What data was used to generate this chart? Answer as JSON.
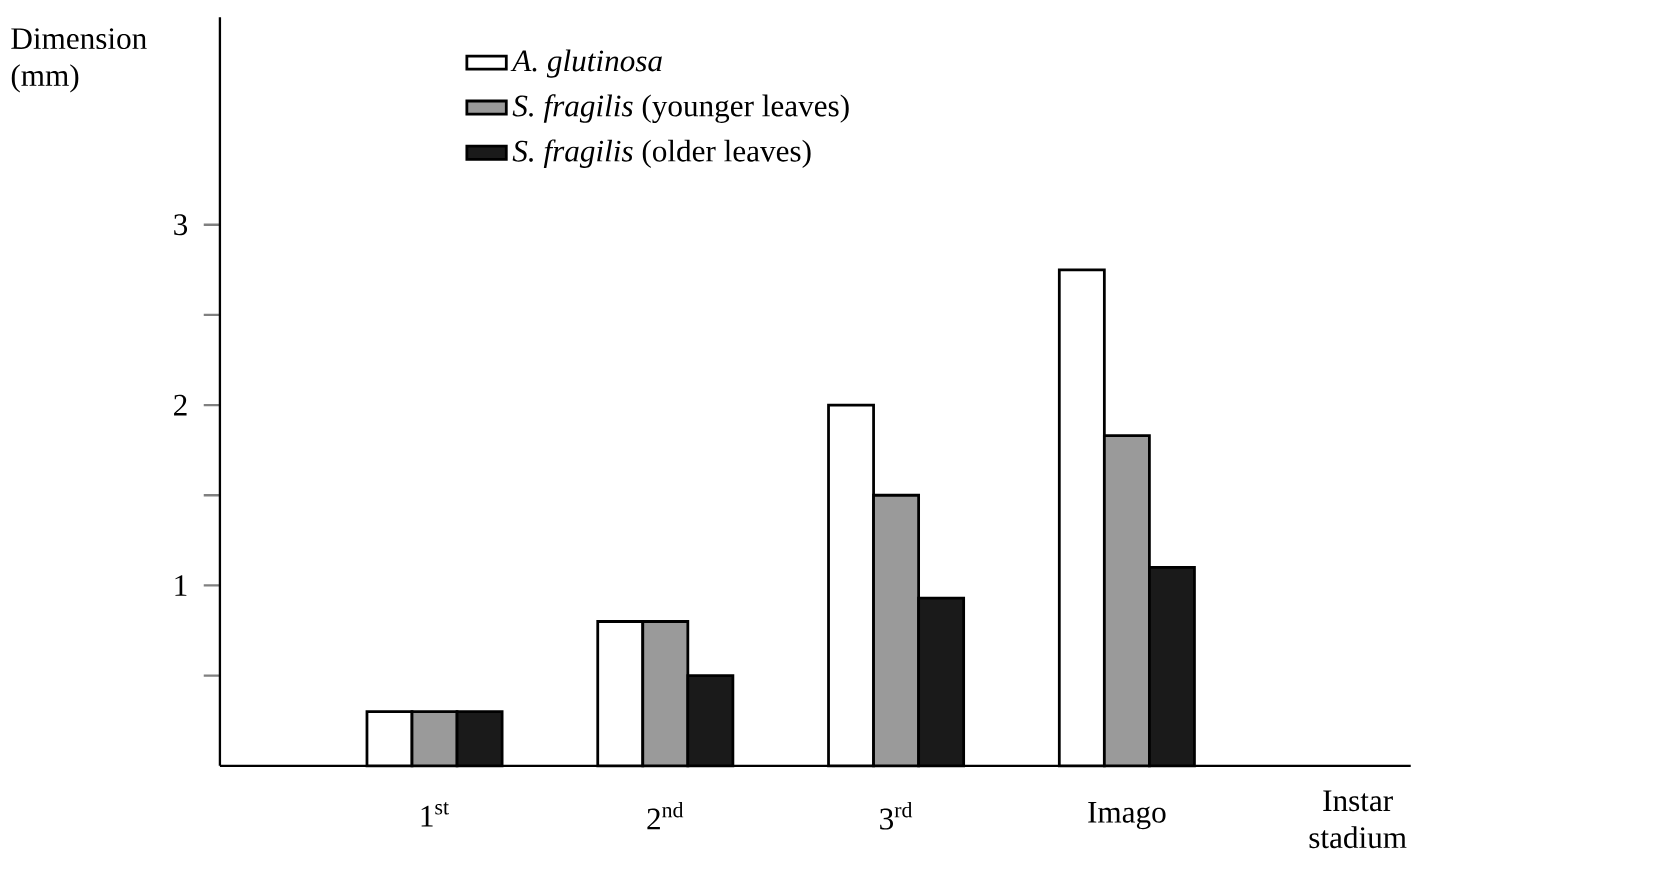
{
  "chart_data": {
    "type": "bar",
    "ylabel": "Dimension (mm)",
    "xlabel": "Instar stadium",
    "categories": [
      "1$^{st}$",
      "2$^{nd}$",
      "3$^{rd}$",
      "Imago"
    ],
    "series": [
      {
        "name": "*A. glutinosa*",
        "color": "#ffffff",
        "values": [
          0.3,
          0.8,
          2.0,
          2.75
        ]
      },
      {
        "name": "*S. fragilis* (younger leaves)",
        "color": "#9a9a9a",
        "values": [
          0.3,
          0.8,
          1.5,
          1.83
        ]
      },
      {
        "name": "*S. fragilis* (older leaves)",
        "color": "#1a1a1a",
        "values": [
          0.3,
          0.5,
          0.93,
          1.1
        ]
      }
    ],
    "ylim": [
      0,
      4.15
    ],
    "yticks": [
      {
        "value": 0.5,
        "label": null
      },
      1,
      {
        "value": 1.5,
        "label": null
      },
      2,
      {
        "value": 2.5,
        "label": null
      },
      3
    ],
    "legend": "top left",
    "grid": false
  }
}
